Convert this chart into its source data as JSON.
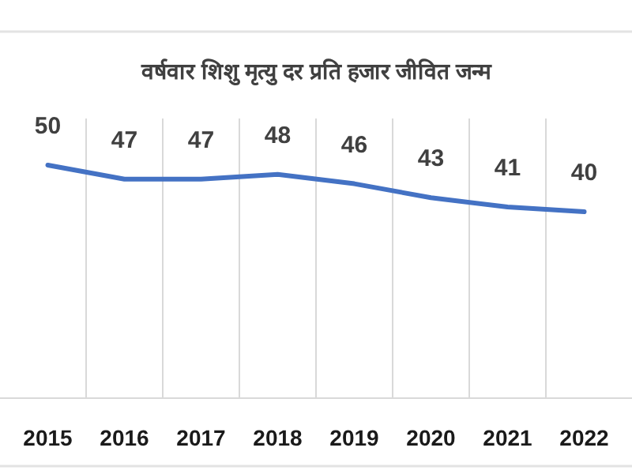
{
  "chart_data": {
    "type": "line",
    "title": "वर्षवार शिशु मृत्यु दर प्रति हजार जीवित जन्म",
    "categories": [
      "2015",
      "2016",
      "2017",
      "2018",
      "2019",
      "2020",
      "2021",
      "2022"
    ],
    "series": [
      {
        "color": "#4472c4",
        "values": [
          50,
          47,
          47,
          48,
          46,
          43,
          41,
          40
        ]
      }
    ],
    "ylim": [
      0,
      60
    ],
    "data_labels": true,
    "grid": "x",
    "marker": "none",
    "line_style": "solid"
  }
}
